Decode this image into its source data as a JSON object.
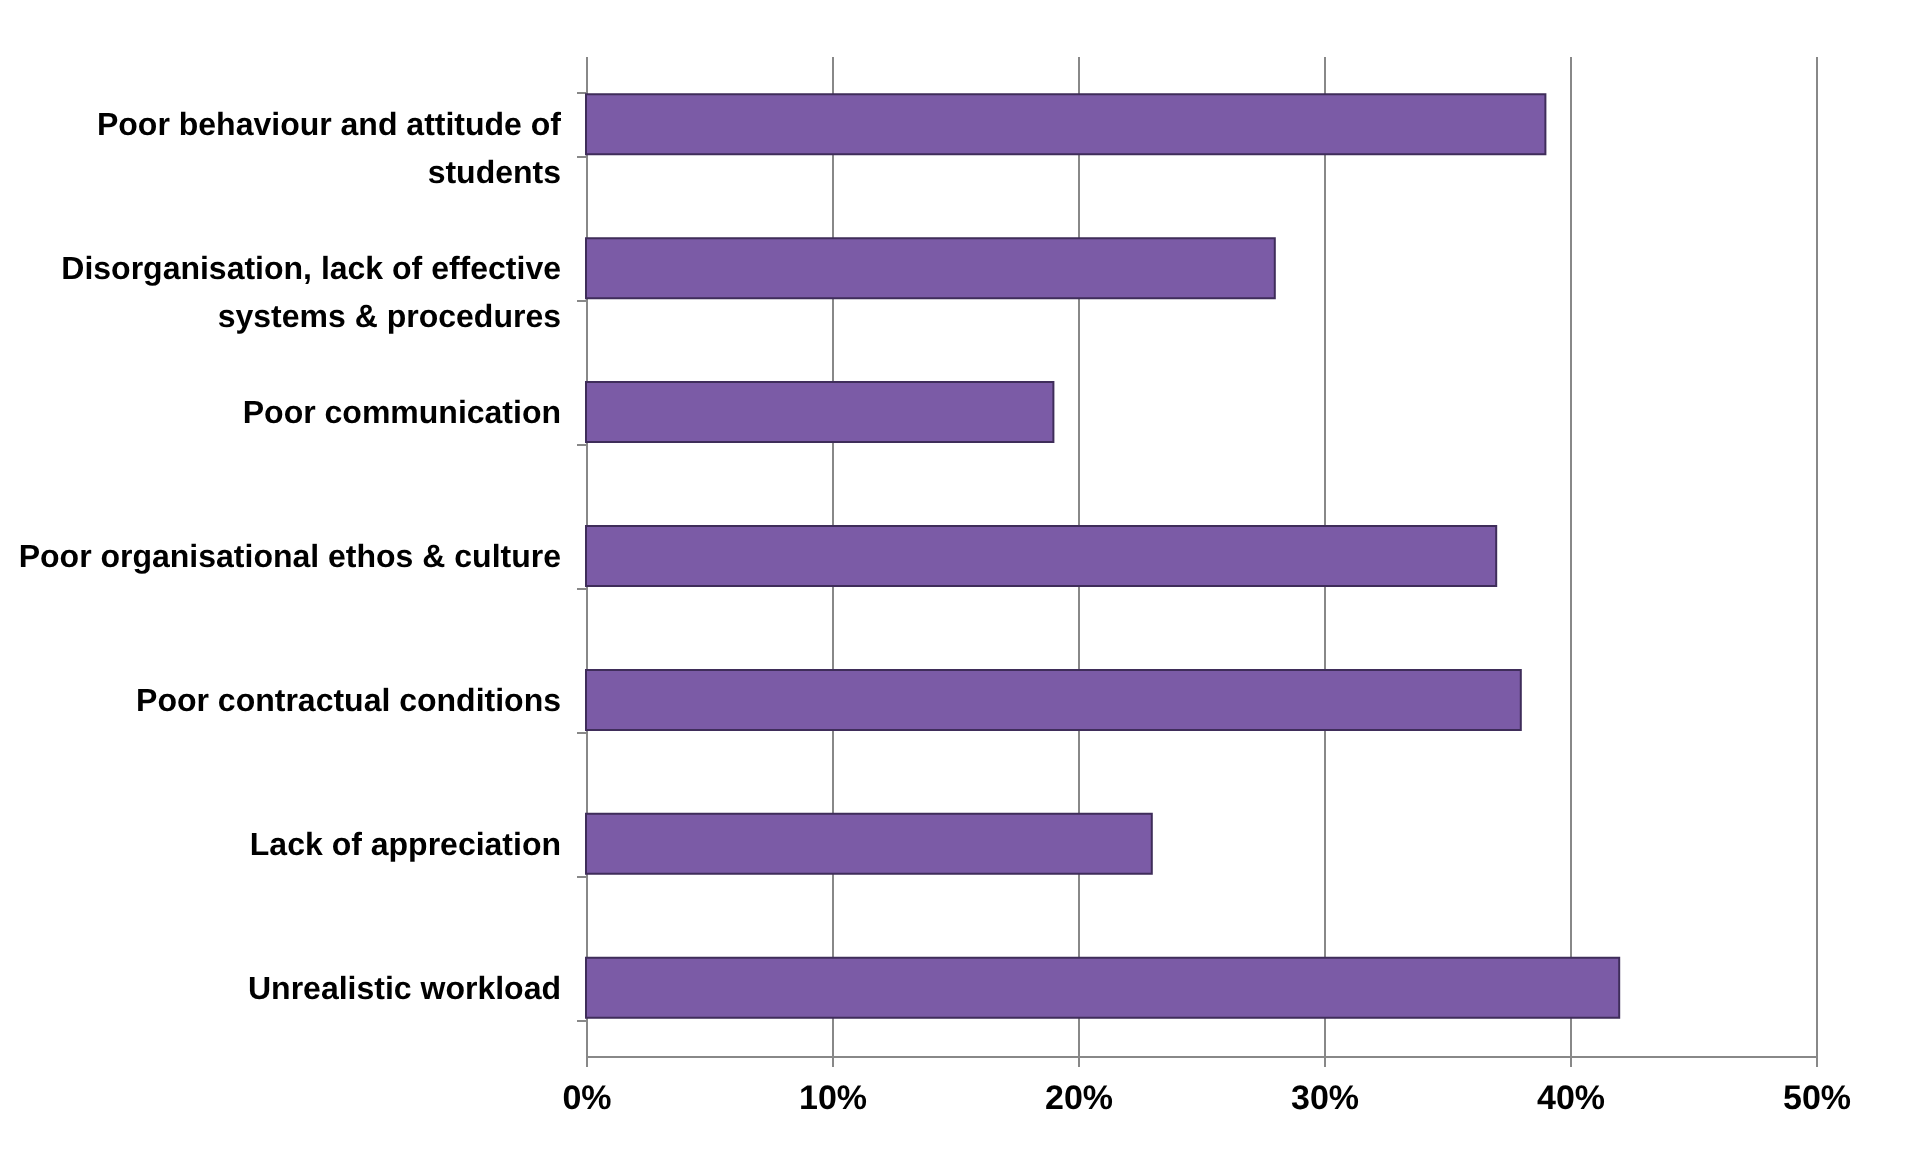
{
  "chart_data": {
    "type": "bar",
    "orientation": "horizontal",
    "categories": [
      "Poor behaviour and attitude of students",
      "Disorganisation, lack of effective systems & procedures",
      "Poor communication",
      "Poor organisational ethos & culture",
      "Poor contractual conditions",
      "Lack of appreciation",
      "Unrealistic workload"
    ],
    "values": [
      39,
      28,
      19,
      37,
      38,
      23,
      42
    ],
    "color": "#7b5ba6",
    "xlim": [
      0,
      50
    ],
    "xticks": [
      {
        "value": 0,
        "label": "0%"
      },
      {
        "value": 10,
        "label": "10%"
      },
      {
        "value": 20,
        "label": "20%"
      },
      {
        "value": 30,
        "label": "30%"
      },
      {
        "value": 40,
        "label": "40%"
      },
      {
        "value": 50,
        "label": "50%"
      }
    ],
    "grid": "x"
  }
}
